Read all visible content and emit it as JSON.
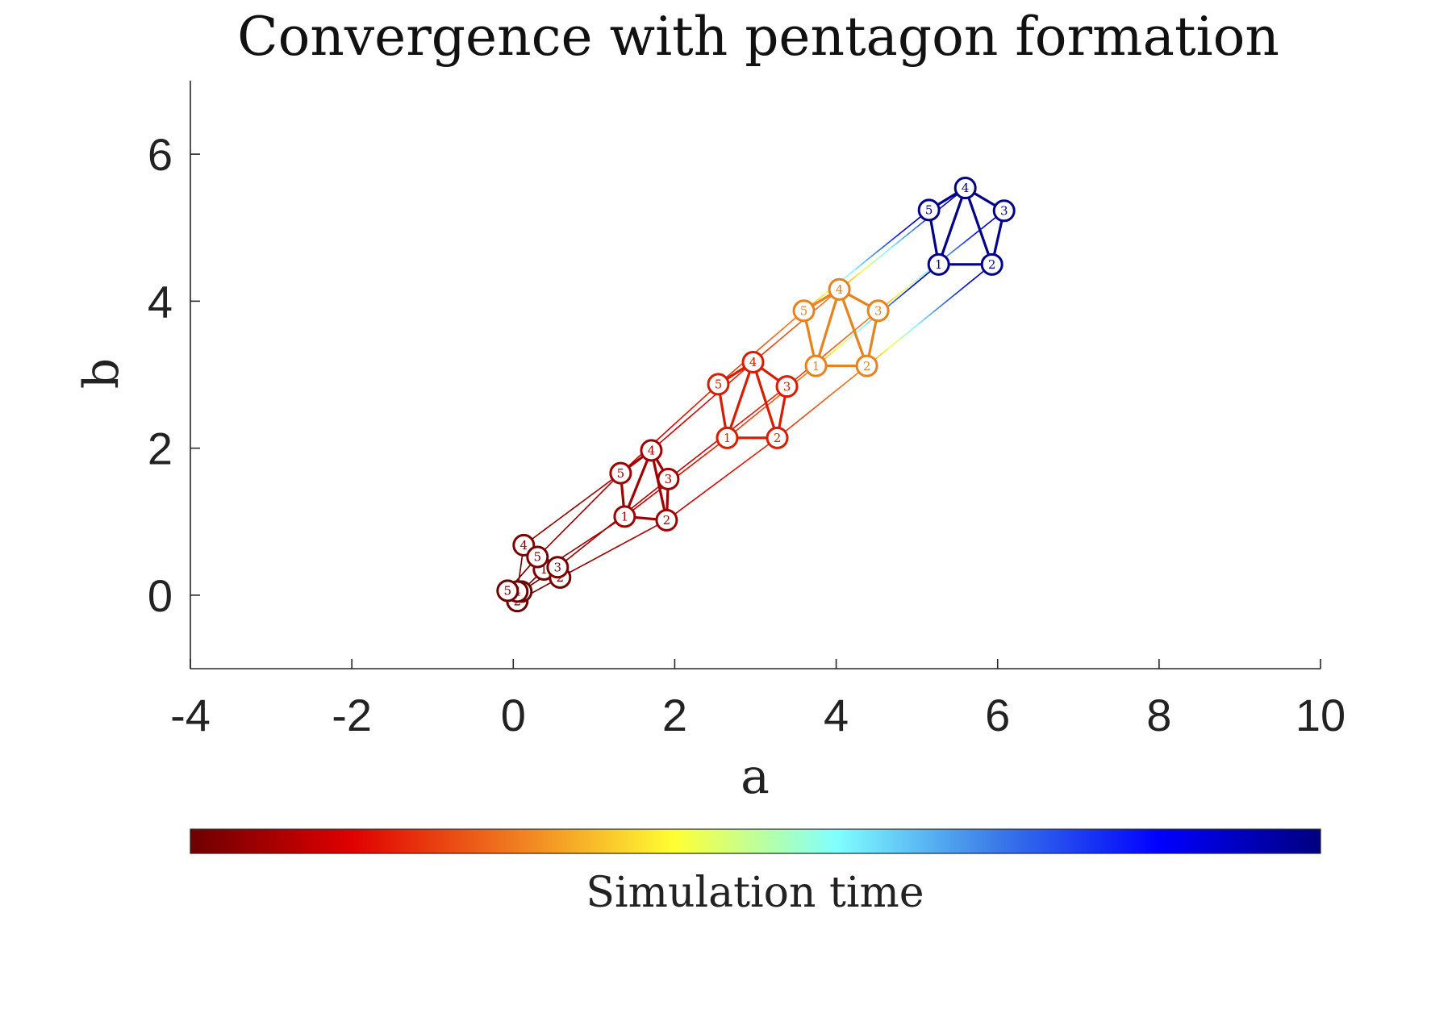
{
  "chart_data": {
    "type": "scatter",
    "title": "Convergence with pentagon formation",
    "xlabel": "a",
    "ylabel": "b",
    "xlim": [
      -4,
      10
    ],
    "ylim": [
      -1,
      7
    ],
    "xticks": [
      -4,
      -2,
      0,
      2,
      4,
      6,
      8,
      10
    ],
    "yticks": [
      0,
      2,
      4,
      6
    ],
    "grid": false,
    "colorbar": {
      "label": "Simulation time",
      "placement": "bottom",
      "colormap": "jet-reversed",
      "stops": [
        "#6e0000",
        "#e00000",
        "#f07a20",
        "#ffff33",
        "#80ffff",
        "#3a7ae8",
        "#0000ff",
        "#000080"
      ]
    },
    "agent_labels": [
      "1",
      "2",
      "3",
      "4",
      "5"
    ],
    "formation_edges": [
      [
        1,
        2
      ],
      [
        2,
        3
      ],
      [
        3,
        4
      ],
      [
        4,
        5
      ],
      [
        5,
        1
      ],
      [
        1,
        4
      ],
      [
        2,
        4
      ]
    ],
    "snapshots": [
      {
        "time_fraction": 0.0,
        "color": "#6e0000",
        "agents": [
          {
            "id": 1,
            "a": 0.05,
            "b": 0.0
          },
          {
            "id": 2,
            "a": 0.05,
            "b": -0.08
          },
          {
            "id": 3,
            "a": 0.1,
            "b": 0.05
          },
          {
            "id": 4,
            "a": 0.05,
            "b": 0.05
          },
          {
            "id": 5,
            "a": -0.07,
            "b": 0.06
          }
        ]
      },
      {
        "time_fraction": 0.03,
        "color": "#7a0000",
        "agents": [
          {
            "id": 1,
            "a": 0.38,
            "b": 0.35
          },
          {
            "id": 2,
            "a": 0.58,
            "b": 0.24
          },
          {
            "id": 3,
            "a": 0.55,
            "b": 0.38
          },
          {
            "id": 4,
            "a": 0.13,
            "b": 0.68
          },
          {
            "id": 5,
            "a": 0.3,
            "b": 0.52
          }
        ]
      },
      {
        "time_fraction": 0.1,
        "color": "#a00000",
        "agents": [
          {
            "id": 1,
            "a": 1.38,
            "b": 1.07
          },
          {
            "id": 2,
            "a": 1.9,
            "b": 1.02
          },
          {
            "id": 3,
            "a": 1.92,
            "b": 1.58
          },
          {
            "id": 4,
            "a": 1.71,
            "b": 1.97
          },
          {
            "id": 5,
            "a": 1.33,
            "b": 1.66
          }
        ]
      },
      {
        "time_fraction": 0.2,
        "color": "#d91c00",
        "agents": [
          {
            "id": 1,
            "a": 2.65,
            "b": 2.14
          },
          {
            "id": 2,
            "a": 3.27,
            "b": 2.14
          },
          {
            "id": 3,
            "a": 3.39,
            "b": 2.84
          },
          {
            "id": 4,
            "a": 2.97,
            "b": 3.17
          },
          {
            "id": 5,
            "a": 2.54,
            "b": 2.87
          }
        ]
      },
      {
        "time_fraction": 0.3,
        "color": "#e8821c",
        "agents": [
          {
            "id": 1,
            "a": 3.75,
            "b": 3.12
          },
          {
            "id": 2,
            "a": 4.38,
            "b": 3.12
          },
          {
            "id": 3,
            "a": 4.52,
            "b": 3.87
          },
          {
            "id": 4,
            "a": 4.04,
            "b": 4.16
          },
          {
            "id": 5,
            "a": 3.6,
            "b": 3.87
          }
        ]
      },
      {
        "time_fraction": 1.0,
        "color": "#00008b",
        "agents": [
          {
            "id": 1,
            "a": 5.27,
            "b": 4.5
          },
          {
            "id": 2,
            "a": 5.93,
            "b": 4.5
          },
          {
            "id": 3,
            "a": 6.08,
            "b": 5.23
          },
          {
            "id": 4,
            "a": 5.6,
            "b": 5.54
          },
          {
            "id": 5,
            "a": 5.15,
            "b": 5.24
          }
        ]
      }
    ]
  }
}
